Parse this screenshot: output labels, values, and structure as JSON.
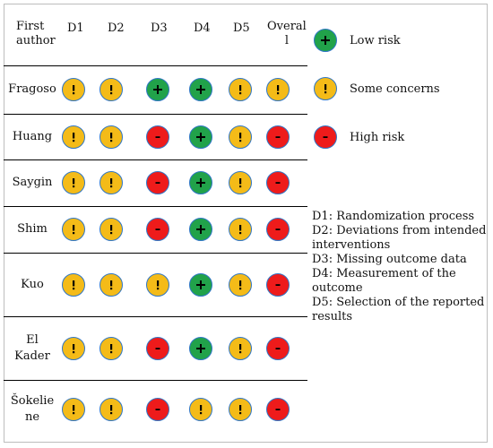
{
  "table": {
    "header": {
      "author": [
        "First",
        "author"
      ],
      "domains": [
        "D1",
        "D2",
        "D3",
        "D4",
        "D5"
      ],
      "overall": [
        "Overal",
        "l"
      ]
    },
    "rows": [
      {
        "author": [
          "Fragoso"
        ],
        "ratings": [
          "some",
          "some",
          "low",
          "low",
          "some",
          "some"
        ]
      },
      {
        "author": [
          "Huang"
        ],
        "ratings": [
          "some",
          "some",
          "high",
          "low",
          "some",
          "high"
        ]
      },
      {
        "author": [
          "Saygin"
        ],
        "ratings": [
          "some",
          "some",
          "high",
          "low",
          "some",
          "high"
        ]
      },
      {
        "author": [
          "Shim"
        ],
        "ratings": [
          "some",
          "some",
          "high",
          "low",
          "some",
          "high"
        ]
      },
      {
        "author": [
          "Kuo"
        ],
        "ratings": [
          "some",
          "some",
          "some",
          "low",
          "some",
          "high"
        ]
      },
      {
        "author": [
          "El",
          "Kader"
        ],
        "ratings": [
          "some",
          "some",
          "high",
          "low",
          "some",
          "high"
        ]
      },
      {
        "author": [
          "Šokelie",
          "ne"
        ],
        "ratings": [
          "some",
          "some",
          "high",
          "some",
          "some",
          "high"
        ]
      }
    ]
  },
  "legend": [
    {
      "level": "low",
      "label": "Low risk"
    },
    {
      "level": "some",
      "label": "Some concerns"
    },
    {
      "level": "high",
      "label": "High risk"
    }
  ],
  "notes": [
    "D1: Randomization process",
    "D2: Deviations from intended interventions",
    "D3: Missing outcome data",
    "D4: Measurement of the outcome",
    "D5: Selection of the reported results"
  ],
  "colors": {
    "low": "#21a24a",
    "some": "#f4bb18",
    "high": "#ee1b1b",
    "outline": "#2f76c6"
  },
  "icons": {
    "low": "plus-icon",
    "some": "exclamation-icon",
    "high": "minus-icon"
  }
}
